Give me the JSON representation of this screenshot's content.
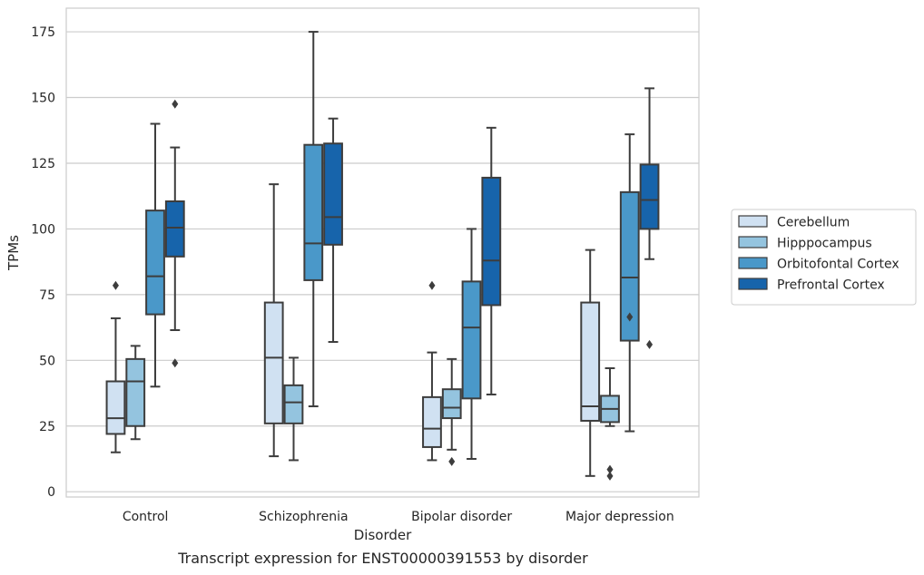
{
  "caption": "Transcript expression for ENST00000391553 by disorder",
  "chart_data": {
    "type": "box",
    "title": "",
    "xlabel": "Disorder",
    "ylabel": "TPMs",
    "ylim": [
      -2,
      184
    ],
    "yticks": [
      0,
      25,
      50,
      75,
      100,
      125,
      150,
      175
    ],
    "grid": "horizontal",
    "legend_position": "right",
    "categories": [
      "Control",
      "Schizophrenia",
      "Bipolar disorder",
      "Major depression"
    ],
    "series": [
      {
        "name": "Cerebellum",
        "color": "#d0e1f2",
        "boxes": [
          {
            "whisker_low": 15,
            "q1": 22,
            "median": 28,
            "q3": 42,
            "whisker_high": 66,
            "outliers": [
              78.5
            ]
          },
          {
            "whisker_low": 13.5,
            "q1": 26,
            "median": 51,
            "q3": 72,
            "whisker_high": 117,
            "outliers": []
          },
          {
            "whisker_low": 12,
            "q1": 17,
            "median": 24,
            "q3": 36,
            "whisker_high": 53,
            "outliers": [
              78.5
            ]
          },
          {
            "whisker_low": 6,
            "q1": 27,
            "median": 32.5,
            "q3": 72,
            "whisker_high": 92,
            "outliers": []
          }
        ]
      },
      {
        "name": "Hipppocampus",
        "color": "#94c4df",
        "boxes": [
          {
            "whisker_low": 20,
            "q1": 25,
            "median": 42,
            "q3": 50.5,
            "whisker_high": 55.5,
            "outliers": []
          },
          {
            "whisker_low": 12,
            "q1": 26,
            "median": 34,
            "q3": 40.5,
            "whisker_high": 51,
            "outliers": []
          },
          {
            "whisker_low": 16,
            "q1": 28,
            "median": 32,
            "q3": 39,
            "whisker_high": 50.5,
            "outliers": [
              11.5
            ]
          },
          {
            "whisker_low": 25,
            "q1": 26.5,
            "median": 31.5,
            "q3": 36.5,
            "whisker_high": 47,
            "outliers": [
              8.5,
              6
            ]
          }
        ]
      },
      {
        "name": "Orbitofontal Cortex",
        "color": "#4a98c9",
        "boxes": [
          {
            "whisker_low": 40,
            "q1": 67.5,
            "median": 82,
            "q3": 107,
            "whisker_high": 140,
            "outliers": []
          },
          {
            "whisker_low": 32.5,
            "q1": 80.5,
            "median": 94.5,
            "q3": 132,
            "whisker_high": 175,
            "outliers": []
          },
          {
            "whisker_low": 12.5,
            "q1": 35.5,
            "median": 62.5,
            "q3": 80,
            "whisker_high": 100,
            "outliers": []
          },
          {
            "whisker_low": 23,
            "q1": 57.5,
            "median": 81.5,
            "q3": 114,
            "whisker_high": 136,
            "outliers": [
              66.5
            ]
          }
        ]
      },
      {
        "name": "Prefrontal Cortex",
        "color": "#1764ab",
        "boxes": [
          {
            "whisker_low": 61.5,
            "q1": 89.5,
            "median": 100.5,
            "q3": 110.5,
            "whisker_high": 131,
            "outliers": [
              147.5,
              49
            ]
          },
          {
            "whisker_low": 57,
            "q1": 94,
            "median": 104.5,
            "q3": 132.5,
            "whisker_high": 142,
            "outliers": []
          },
          {
            "whisker_low": 37,
            "q1": 71,
            "median": 88,
            "q3": 119.5,
            "whisker_high": 138.5,
            "outliers": []
          },
          {
            "whisker_low": 88.5,
            "q1": 100,
            "median": 111,
            "q3": 124.5,
            "whisker_high": 153.5,
            "outliers": [
              56
            ]
          }
        ]
      }
    ]
  }
}
